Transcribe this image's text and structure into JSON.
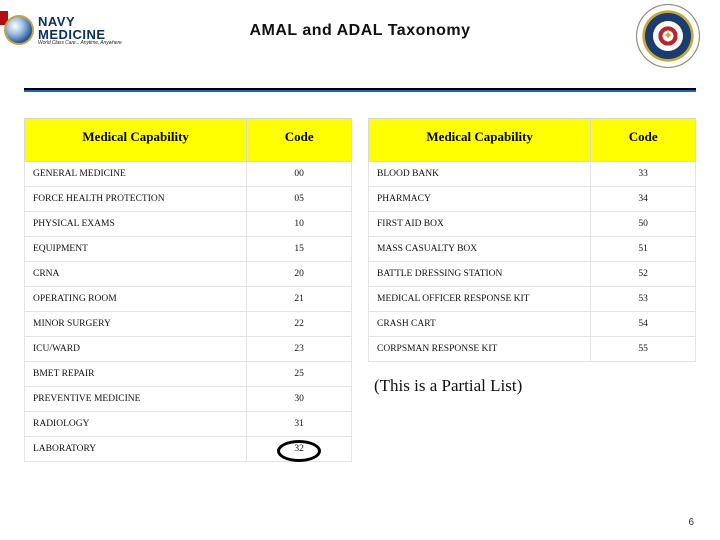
{
  "header": {
    "title": "AMAL and ADAL  Taxonomy",
    "logo_left": {
      "name": "NAVY MEDICINE",
      "tagline": "World Class Care... Anytime, Anywhere"
    },
    "logo_right_alt": "Department Seal"
  },
  "left_table": {
    "columns": {
      "capability": "Medical Capability",
      "code": "Code"
    },
    "rows": [
      {
        "cap": "GENERAL MEDICINE",
        "code": "00"
      },
      {
        "cap": "FORCE HEALTH PROTECTION",
        "code": "05"
      },
      {
        "cap": "PHYSICAL EXAMS",
        "code": "10"
      },
      {
        "cap": "EQUIPMENT",
        "code": "15"
      },
      {
        "cap": "CRNA",
        "code": "20"
      },
      {
        "cap": "OPERATING ROOM",
        "code": "21"
      },
      {
        "cap": "MINOR SURGERY",
        "code": "22"
      },
      {
        "cap": "ICU/WARD",
        "code": "23"
      },
      {
        "cap": "BMET REPAIR",
        "code": "25"
      },
      {
        "cap": "PREVENTIVE MEDICINE",
        "code": "30"
      },
      {
        "cap": "RADIOLOGY",
        "code": "31"
      },
      {
        "cap": "LABORATORY",
        "code": "32"
      }
    ]
  },
  "right_table": {
    "columns": {
      "capability": "Medical Capability",
      "code": "Code"
    },
    "rows": [
      {
        "cap": "BLOOD BANK",
        "code": "33"
      },
      {
        "cap": "PHARMACY",
        "code": "34"
      },
      {
        "cap": "FIRST AID BOX",
        "code": "50"
      },
      {
        "cap": "MASS CASUALTY BOX",
        "code": "51"
      },
      {
        "cap": "BATTLE DRESSING STATION",
        "code": "52"
      },
      {
        "cap": "MEDICAL OFFICER RESPONSE KIT",
        "code": "53"
      },
      {
        "cap": "CRASH CART",
        "code": "54"
      },
      {
        "cap": "CORPSMAN RESPONSE KIT",
        "code": "55"
      }
    ]
  },
  "note": "(This is a Partial List)",
  "slide_number": "6",
  "highlight": {
    "code": "32",
    "color": "#000000"
  },
  "colors": {
    "header_bg": "#ffff00",
    "border": "#e4e4e4",
    "divider_top": "#000000",
    "divider_bottom": "#1a63b5"
  }
}
